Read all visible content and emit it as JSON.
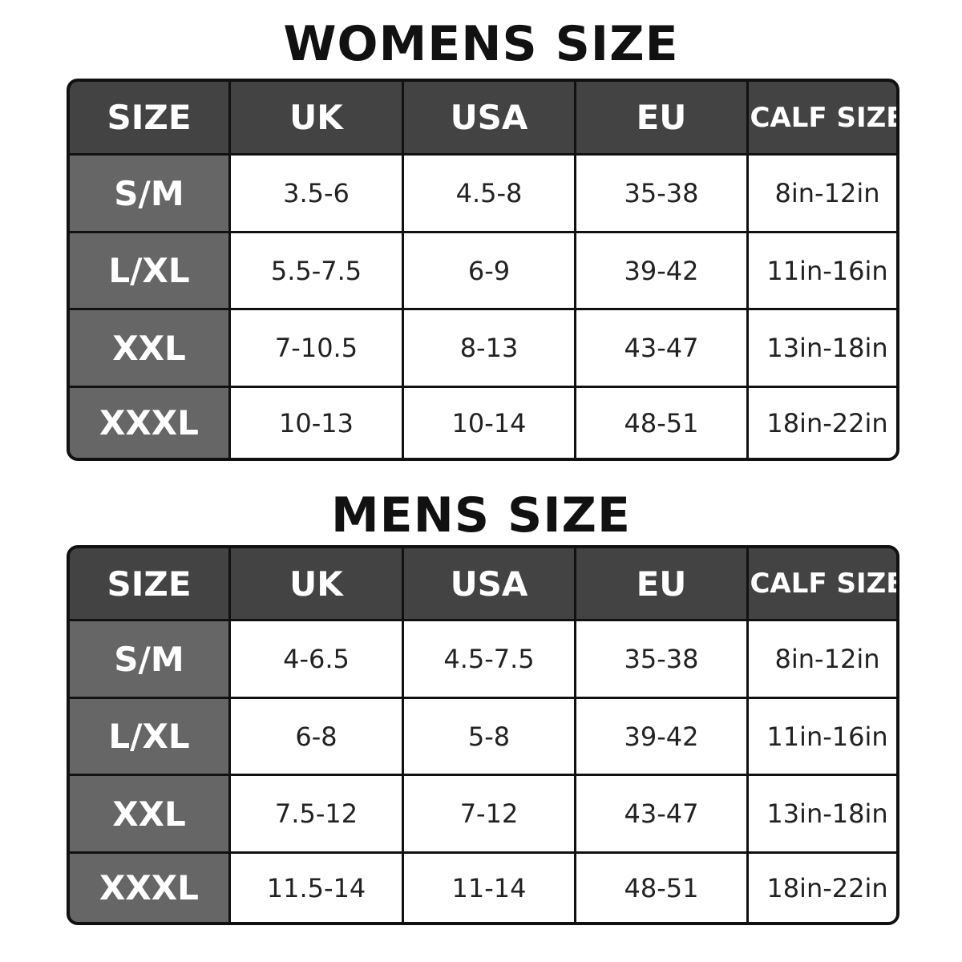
{
  "colors": {
    "header": "#434343",
    "size_column": "#666666",
    "border": "#111111"
  },
  "tables": [
    {
      "title": "WOMENS SIZE",
      "headers": [
        "SIZE",
        "UK",
        "USA",
        "EU",
        "CALF SIZE"
      ],
      "rows": [
        [
          "S/M",
          "3.5-6",
          "4.5-8",
          "35-38",
          "8in-12in"
        ],
        [
          "L/XL",
          "5.5-7.5",
          "6-9",
          "39-42",
          "11in-16in"
        ],
        [
          "XXL",
          "7-10.5",
          "8-13",
          "43-47",
          "13in-18in"
        ],
        [
          "XXXL",
          "10-13",
          "10-14",
          "48-51",
          "18in-22in"
        ]
      ]
    },
    {
      "title": "MENS SIZE",
      "headers": [
        "SIZE",
        "UK",
        "USA",
        "EU",
        "CALF SIZE"
      ],
      "rows": [
        [
          "S/M",
          "4-6.5",
          "4.5-7.5",
          "35-38",
          "8in-12in"
        ],
        [
          "L/XL",
          "6-8",
          "5-8",
          "39-42",
          "11in-16in"
        ],
        [
          "XXL",
          "7.5-12",
          "7-12",
          "43-47",
          "13in-18in"
        ],
        [
          "XXXL",
          "11.5-14",
          "11-14",
          "48-51",
          "18in-22in"
        ]
      ]
    }
  ]
}
